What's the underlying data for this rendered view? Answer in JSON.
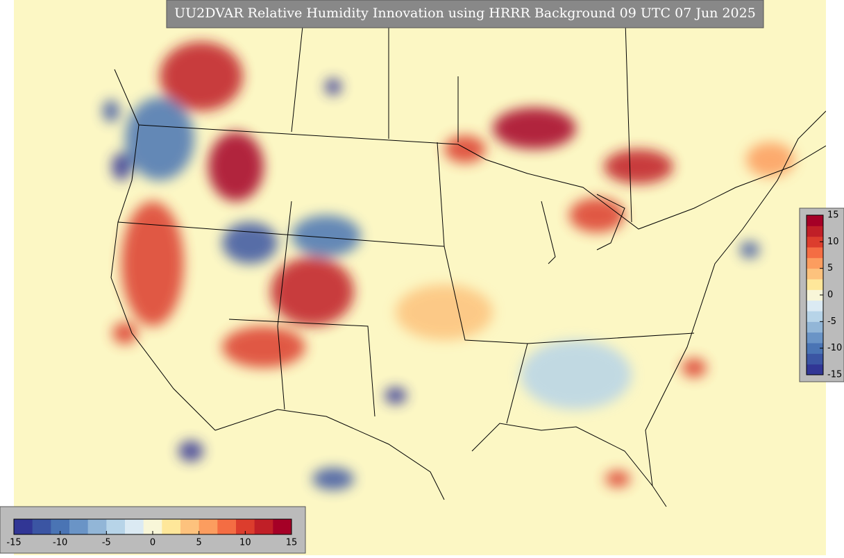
{
  "title": "UU2DVAR Relative Humidity Innovation using HRRR Background 09 UTC 07 Jun 2025",
  "colorbars": [
    {
      "orientation": "vertical",
      "lim": [
        -15,
        15
      ],
      "ticks": [
        15,
        10,
        5,
        0,
        -5,
        -10,
        -15
      ]
    },
    {
      "orientation": "horizontal",
      "lim": [
        -15,
        15
      ],
      "ticks": [
        -15,
        -10,
        -5,
        0,
        5,
        10,
        15
      ]
    }
  ],
  "colors": [
    "#313695",
    "#3b55a3",
    "#4a74b4",
    "#6a94c6",
    "#92b6d7",
    "#b7d4e8",
    "#dbeaf3",
    "#f8f6d8",
    "#fee79a",
    "#fdc27d",
    "#fc9d5f",
    "#f46d43",
    "#dc3d2d",
    "#c01f27",
    "#a50026"
  ]
}
